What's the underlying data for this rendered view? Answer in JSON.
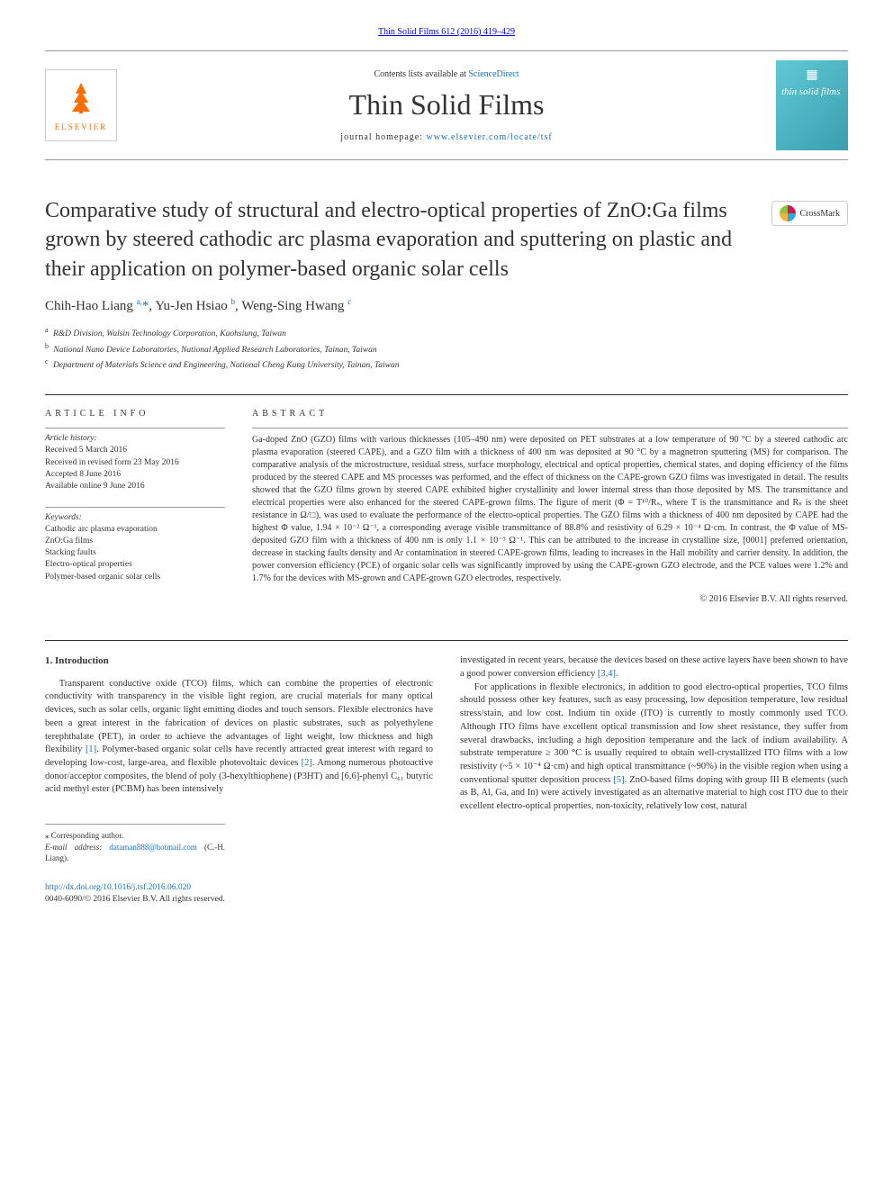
{
  "top_link": "Thin Solid Films 612 (2016) 419–429",
  "header": {
    "contents_prefix": "Contents lists available at ",
    "contents_link": "ScienceDirect",
    "journal_title": "Thin Solid Films",
    "homepage_prefix": "journal homepage: ",
    "homepage_link": "www.elsevier.com/locate/tsf",
    "publisher": "ELSEVIER",
    "cover_text": "thin solid films"
  },
  "crossmark_label": "CrossMark",
  "article_title": "Comparative study of structural and electro-optical properties of ZnO:Ga films grown by steered cathodic arc plasma evaporation and sputtering on plastic and their application on polymer-based organic solar cells",
  "authors_html": "Chih-Hao Liang <sup>a,</sup><span class='ast'>*</span>, Yu-Jen Hsiao <sup>b</sup>, Weng-Sing Hwang <sup>c</sup>",
  "affiliations": [
    {
      "sup": "a",
      "text": "R&D Division, Walsin Technology Corporation, Kaohsiung, Taiwan"
    },
    {
      "sup": "b",
      "text": "National Nano Device Laboratories, National Applied Research Laboratories, Tainan, Taiwan"
    },
    {
      "sup": "c",
      "text": "Department of Materials Science and Engineering, National Cheng Kung University, Tainan, Taiwan"
    }
  ],
  "info": {
    "heading": "ARTICLE INFO",
    "history_label": "Article history:",
    "history": [
      "Received 5 March 2016",
      "Received in revised form 23 May 2016",
      "Accepted 8 June 2016",
      "Available online 9 June 2016"
    ],
    "keywords_label": "Keywords:",
    "keywords": [
      "Cathodic arc plasma evaporation",
      "ZnO:Ga films",
      "Stacking faults",
      "Electro-optical properties",
      "Polymer-based organic solar cells"
    ]
  },
  "abstract": {
    "heading": "ABSTRACT",
    "text": "Ga-doped ZnO (GZO) films with various thicknesses (105–490 nm) were deposited on PET substrates at a low temperature of 90 °C by a steered cathodic arc plasma evaporation (steered CAPE), and a GZO film with a thickness of 400 nm was deposited at 90 °C by a magnetron sputtering (MS) for comparison. The comparative analysis of the microstructure, residual stress, surface morphology, electrical and optical properties, chemical states, and doping efficiency of the films produced by the steered CAPE and MS processes was performed, and the effect of thickness on the CAPE-grown GZO films was investigated in detail. The results showed that the GZO films grown by steered CAPE exhibited higher crystallinity and lower internal stress than those deposited by MS. The transmittance and electrical properties were also enhanced for the steered CAPE-grown films. The figure of merit (Φ = T¹⁰/Rₛ, where T is the transmittance and Rₛ is the sheet resistance in Ω/□), was used to evaluate the performance of the electro-optical properties. The GZO films with a thickness of 400 nm deposited by CAPE had the highest Φ value, 1.94 × 10⁻² Ω⁻¹, a corresponding average visible transmittance of 88.8% and resistivity of 6.29 × 10⁻⁴ Ω·cm. In contrast, the Φ value of MS-deposited GZO film with a thickness of 400 nm is only 1.1 × 10⁻³ Ω⁻¹. This can be attributed to the increase in crystalline size, [0001] preferred orientation, decrease in stacking faults density and Ar contamination in steered CAPE-grown films, leading to increases in the Hall mobility and carrier density. In addition, the power conversion efficiency (PCE) of organic solar cells was significantly improved by using the CAPE-grown GZO electrode, and the PCE values were 1.2% and 1.7% for the devices with MS-grown and CAPE-grown GZO electrodes, respectively.",
    "copyright": "© 2016 Elsevier B.V. All rights reserved."
  },
  "body": {
    "section_heading": "1. Introduction",
    "left_p1": "Transparent conductive oxide (TCO) films, which can combine the properties of electronic conductivity with transparency in the visible light region, are crucial materials for many optical devices, such as solar cells, organic light emitting diodes and touch sensors. Flexible electronics have been a great interest in the fabrication of devices on plastic substrates, such as polyethylene terephthalate (PET), in order to achieve the advantages of light weight, low thickness and high flexibility ",
    "left_cite1": "[1]",
    "left_p1b": ". Polymer-based organic solar cells have recently attracted great interest with regard to developing low-cost, large-area, and flexible photovoltaic devices ",
    "left_cite2": "[2]",
    "left_p1c": ". Among numerous photoactive donor/acceptor composites, the blend of poly (3-hexylthiophene) (P3HT) and [6,6]-phenyl C₆₁ butyric acid methyl ester (PCBM) has been intensively",
    "right_p1a": "investigated in recent years, because the devices based on these active layers have been shown to have a good power conversion efficiency ",
    "right_cite1": "[3,4]",
    "right_p1b": ".",
    "right_p2a": "For applications in flexible electronics, in addition to good electro-optical properties, TCO films should possess other key features, such as easy processing, low deposition temperature, low residual stress/stain, and low cost. Indium tin oxide (ITO) is currently to mostly commonly used TCO. Although ITO films have excellent optical transmission and low sheet resistance, they suffer from several drawbacks, including a high deposition temperature and the lack of indium availability. A substrate temperature ≥ 300 °C is usually required to obtain well-crystallized ITO films with a low resistivity (~5 × 10⁻⁴ Ω·cm) and high optical transmittance (~90%) in the visible region when using a conventional sputter deposition process ",
    "right_cite2": "[5]",
    "right_p2b": ". ZnO-based films doping with group III B elements (such as B, Al, Ga, and In) were actively investigated as an alternative material to high cost ITO due to their excellent electro-optical properties, non-toxicity, relatively low cost, natural"
  },
  "footer": {
    "corresponding": "⁎ Corresponding author.",
    "email_label": "E-mail address: ",
    "email": "dataman888@hotmail.com",
    "email_suffix": " (C.-H. Liang)."
  },
  "doi": {
    "link": "http://dx.doi.org/10.1016/j.tsf.2016.06.020",
    "issn_line": "0040-6090/© 2016 Elsevier B.V. All rights reserved."
  },
  "colors": {
    "link": "#1a6fb3",
    "elsevier": "#ff6c00",
    "text": "#333333",
    "rule": "#999999"
  }
}
